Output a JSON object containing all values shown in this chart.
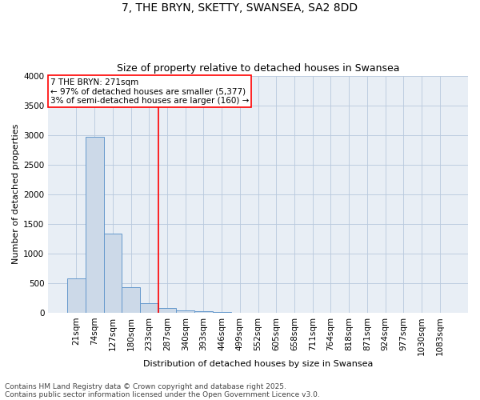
{
  "title1": "7, THE BRYN, SKETTY, SWANSEA, SA2 8DD",
  "title2": "Size of property relative to detached houses in Swansea",
  "xlabel": "Distribution of detached houses by size in Swansea",
  "ylabel": "Number of detached properties",
  "categories": [
    "21sqm",
    "74sqm",
    "127sqm",
    "180sqm",
    "233sqm",
    "287sqm",
    "340sqm",
    "393sqm",
    "446sqm",
    "499sqm",
    "552sqm",
    "605sqm",
    "658sqm",
    "711sqm",
    "764sqm",
    "818sqm",
    "871sqm",
    "924sqm",
    "977sqm",
    "1030sqm",
    "1083sqm"
  ],
  "values": [
    580,
    2970,
    1340,
    425,
    160,
    75,
    45,
    30,
    10,
    5,
    2,
    1,
    0,
    0,
    0,
    0,
    0,
    0,
    0,
    0,
    0
  ],
  "bar_color": "#ccd9e8",
  "bar_edge_color": "#6699cc",
  "vline_position": 4.5,
  "vline_color": "red",
  "annotation_text": "7 THE BRYN: 271sqm\n← 97% of detached houses are smaller (5,377)\n3% of semi-detached houses are larger (160) →",
  "annotation_box_color": "red",
  "ylim": [
    0,
    4000
  ],
  "yticks": [
    0,
    500,
    1000,
    1500,
    2000,
    2500,
    3000,
    3500,
    4000
  ],
  "grid_color": "#b8c8dc",
  "background_color": "#e8eef5",
  "footer1": "Contains HM Land Registry data © Crown copyright and database right 2025.",
  "footer2": "Contains public sector information licensed under the Open Government Licence v3.0.",
  "title_fontsize": 10,
  "subtitle_fontsize": 9,
  "axis_label_fontsize": 8,
  "tick_fontsize": 7.5,
  "annotation_fontsize": 7.5,
  "footer_fontsize": 6.5
}
